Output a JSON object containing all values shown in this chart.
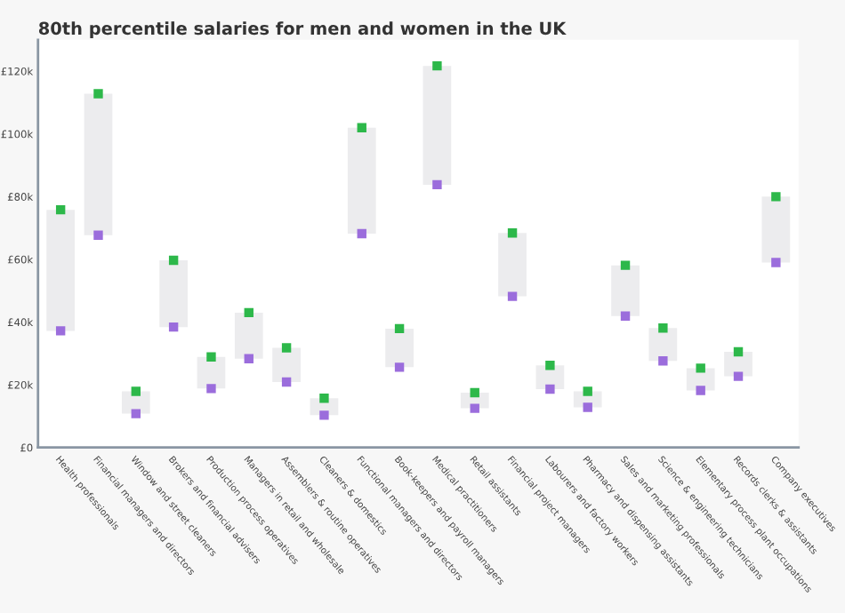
{
  "chart_data": {
    "type": "bar",
    "title": "80th percentile salaries for men and women in the UK",
    "categories": [
      "Health professionals",
      "Financial managers and directors",
      "Window and street cleaners",
      "Brokers and financial advisers",
      "Production process operatives",
      "Managers in retail and wholesale",
      "Assemblers & routine operatives",
      "Cleaners & domestics",
      "Functional managers and directors",
      "Book-keepers and payroll managers",
      "Medical practitioners",
      "Retail assistants",
      "Financial project managers",
      "Labourers and factory workers",
      "Pharmacy and dispensing assistants",
      "Sales and marketing professionals",
      "Science & engineering technicians",
      "Elementary process plant occupations",
      "Records clerks & assistants",
      "Company executives"
    ],
    "series": [
      {
        "type": "bar",
        "color": "#ececee",
        "base": [
          37.2,
          67.7,
          10.8,
          38.4,
          18.8,
          28.3,
          20.9,
          10.3,
          68.2,
          25.6,
          83.8,
          12.5,
          48.2,
          18.6,
          12.8,
          41.9,
          27.6,
          18.2,
          22.7,
          59.0
        ],
        "values": [
          38.6,
          45.1,
          7.1,
          21.3,
          10.1,
          14.7,
          10.9,
          5.4,
          33.8,
          12.3,
          37.9,
          5.0,
          20.2,
          7.6,
          5.1,
          16.2,
          10.5,
          7.1,
          7.8,
          21.0
        ]
      },
      {
        "type": "scatter",
        "color": "#2db84a",
        "values": [
          75.8,
          112.8,
          17.9,
          59.7,
          28.9,
          43.0,
          31.8,
          15.7,
          102.0,
          37.9,
          121.7,
          17.5,
          68.4,
          26.2,
          17.9,
          58.1,
          38.1,
          25.3,
          30.5,
          80.0
        ]
      },
      {
        "type": "scatter",
        "color": "#9b6ddc",
        "values": [
          37.2,
          67.7,
          10.8,
          38.4,
          18.8,
          28.3,
          20.9,
          10.3,
          68.2,
          25.6,
          83.8,
          12.5,
          48.2,
          18.6,
          12.8,
          41.9,
          27.6,
          18.2,
          22.7,
          59.0
        ]
      }
    ],
    "ylim": [
      0,
      130
    ],
    "yticks": [
      {
        "value": 0,
        "label": "£0"
      },
      {
        "value": 20,
        "label": "£20k"
      },
      {
        "value": 40,
        "label": "£40k"
      },
      {
        "value": 60,
        "label": "£60k"
      },
      {
        "value": 80,
        "label": "£80k"
      },
      {
        "value": 100,
        "label": "£100k"
      },
      {
        "value": 120,
        "label": "£120k"
      }
    ],
    "grid": false
  }
}
